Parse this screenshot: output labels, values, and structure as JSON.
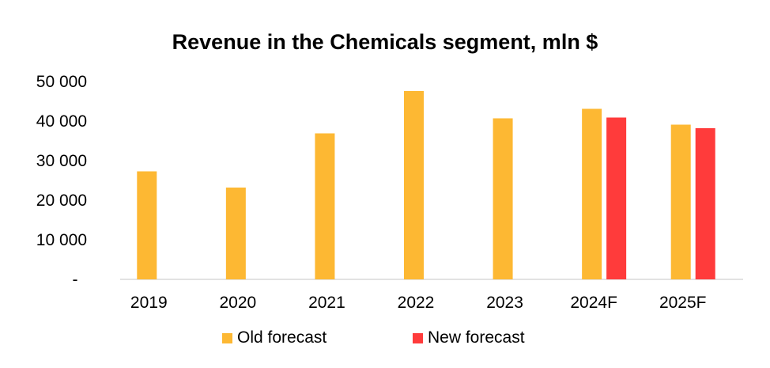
{
  "chart_data": {
    "type": "bar",
    "title": "Revenue in the Chemicals segment, mln $",
    "xlabel": "",
    "ylabel": "",
    "ylim": [
      0,
      50000
    ],
    "y_ticks": [
      {
        "value": 0,
        "label": "-"
      },
      {
        "value": 10000,
        "label": "10 000"
      },
      {
        "value": 20000,
        "label": "20 000"
      },
      {
        "value": 30000,
        "label": "30 000"
      },
      {
        "value": 40000,
        "label": "40 000"
      },
      {
        "value": 50000,
        "label": "50 000"
      }
    ],
    "grid": false,
    "legend_position": "bottom",
    "categories": [
      "2019",
      "2020",
      "2021",
      "2022",
      "2023",
      "2024F",
      "2025F"
    ],
    "series": [
      {
        "name": "Old forecast",
        "color": "#FDB833",
        "values": [
          27300,
          23200,
          36900,
          47600,
          40700,
          43100,
          39100
        ]
      },
      {
        "name": "New forecast",
        "color": "#FF3B3B",
        "values": [
          null,
          null,
          null,
          null,
          null,
          40900,
          38200
        ]
      }
    ]
  }
}
